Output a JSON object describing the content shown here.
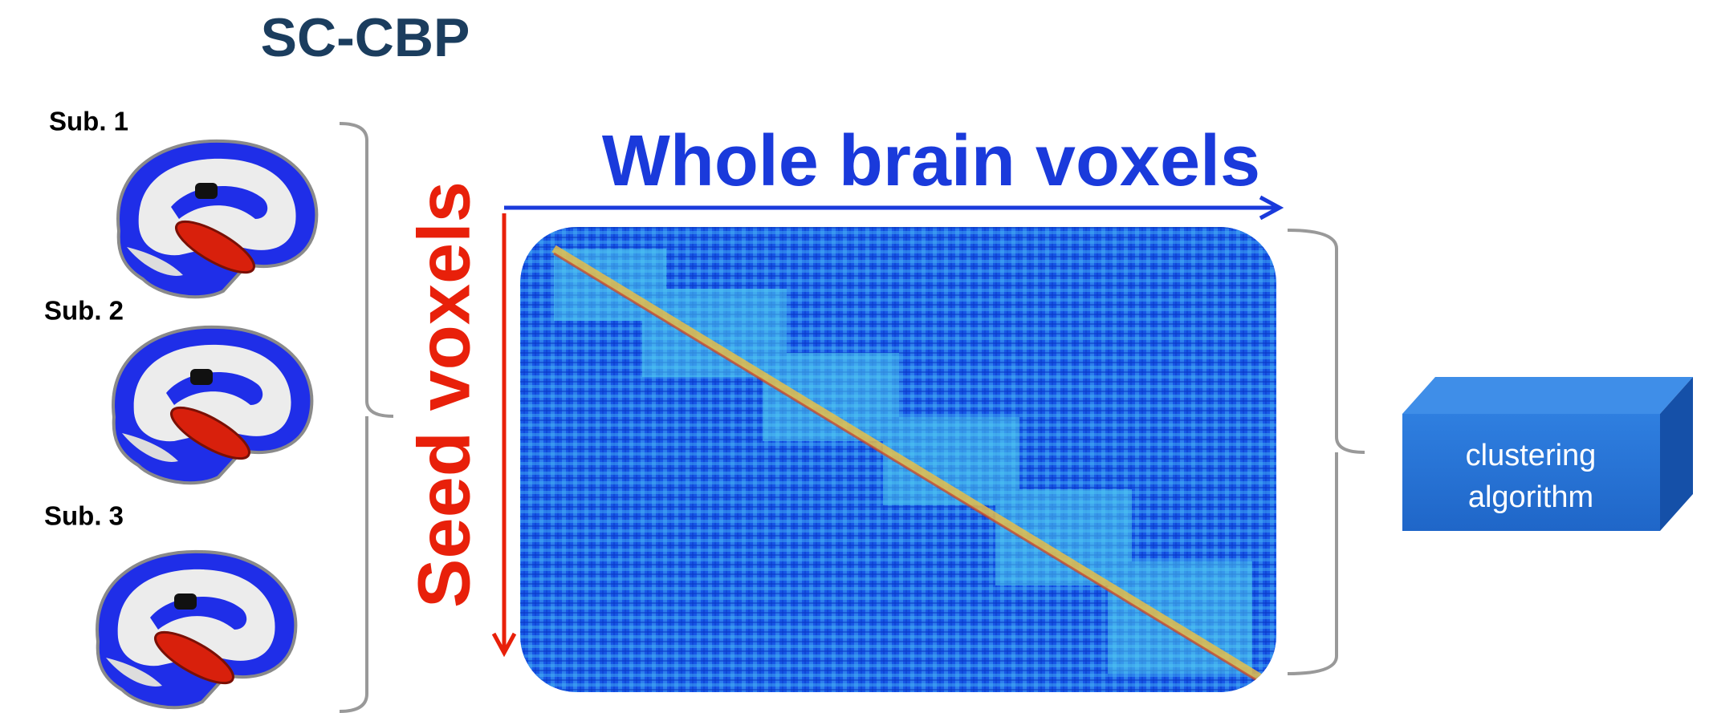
{
  "title": "SC-CBP",
  "subjects": [
    "Sub. 1",
    "Sub. 2",
    "Sub. 3"
  ],
  "matrix": {
    "x_label": "Whole brain voxels",
    "y_label": "Seed voxels"
  },
  "box": {
    "lines": [
      "clustering",
      "algorithm"
    ]
  }
}
